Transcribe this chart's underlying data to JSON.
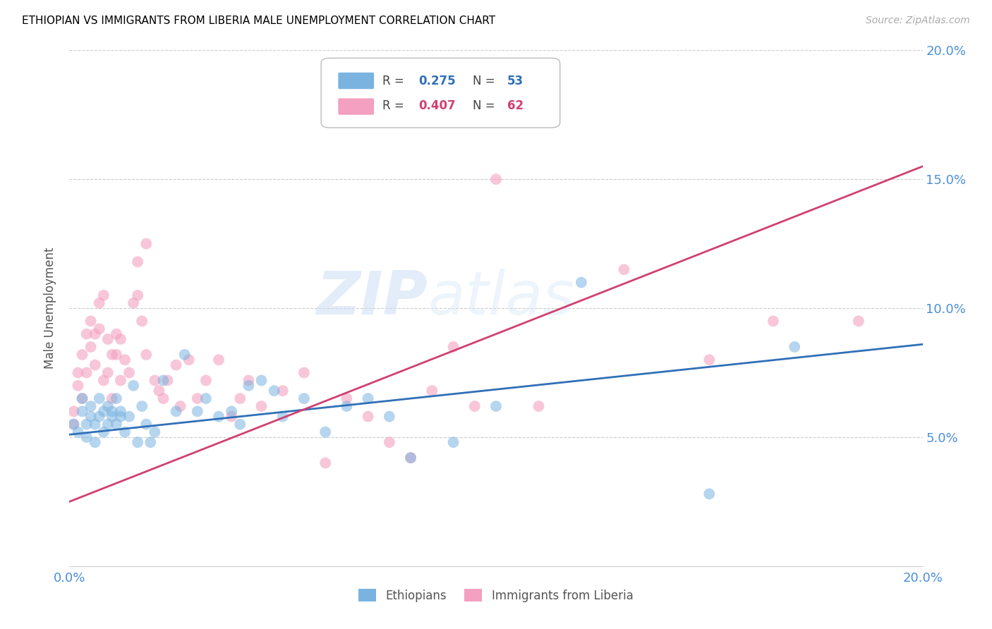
{
  "title": "ETHIOPIAN VS IMMIGRANTS FROM LIBERIA MALE UNEMPLOYMENT CORRELATION CHART",
  "source": "Source: ZipAtlas.com",
  "ylabel": "Male Unemployment",
  "x_min": 0.0,
  "x_max": 0.2,
  "y_min": 0.0,
  "y_max": 0.2,
  "blue_color": "#7ab3e0",
  "pink_color": "#f4a0c0",
  "blue_line_color": "#3070b8",
  "pink_line_color": "#d04070",
  "tick_color": "#4a90d9",
  "legend_label_blue": "Ethiopians",
  "legend_label_pink": "Immigrants from Liberia",
  "watermark_text": "ZIPatlas",
  "blue_slope": 0.175,
  "blue_intercept": 0.051,
  "pink_slope": 0.65,
  "pink_intercept": 0.025,
  "blue_x": [
    0.001,
    0.002,
    0.003,
    0.003,
    0.004,
    0.004,
    0.005,
    0.005,
    0.006,
    0.006,
    0.007,
    0.007,
    0.008,
    0.008,
    0.009,
    0.009,
    0.01,
    0.01,
    0.011,
    0.011,
    0.012,
    0.012,
    0.013,
    0.014,
    0.015,
    0.016,
    0.017,
    0.018,
    0.019,
    0.02,
    0.022,
    0.025,
    0.027,
    0.03,
    0.032,
    0.035,
    0.038,
    0.04,
    0.042,
    0.045,
    0.048,
    0.05,
    0.055,
    0.06,
    0.065,
    0.07,
    0.075,
    0.08,
    0.09,
    0.1,
    0.12,
    0.15,
    0.17
  ],
  "blue_y": [
    0.055,
    0.052,
    0.06,
    0.065,
    0.055,
    0.05,
    0.062,
    0.058,
    0.048,
    0.055,
    0.058,
    0.065,
    0.052,
    0.06,
    0.055,
    0.062,
    0.058,
    0.06,
    0.065,
    0.055,
    0.06,
    0.058,
    0.052,
    0.058,
    0.07,
    0.048,
    0.062,
    0.055,
    0.048,
    0.052,
    0.072,
    0.06,
    0.082,
    0.06,
    0.065,
    0.058,
    0.06,
    0.055,
    0.07,
    0.072,
    0.068,
    0.058,
    0.065,
    0.052,
    0.062,
    0.065,
    0.058,
    0.042,
    0.048,
    0.062,
    0.11,
    0.028,
    0.085
  ],
  "pink_x": [
    0.001,
    0.001,
    0.002,
    0.002,
    0.003,
    0.003,
    0.004,
    0.004,
    0.005,
    0.005,
    0.006,
    0.006,
    0.007,
    0.007,
    0.008,
    0.008,
    0.009,
    0.009,
    0.01,
    0.01,
    0.011,
    0.011,
    0.012,
    0.012,
    0.013,
    0.014,
    0.015,
    0.016,
    0.016,
    0.017,
    0.018,
    0.018,
    0.02,
    0.021,
    0.022,
    0.023,
    0.025,
    0.026,
    0.028,
    0.03,
    0.032,
    0.035,
    0.038,
    0.04,
    0.042,
    0.045,
    0.05,
    0.055,
    0.06,
    0.065,
    0.07,
    0.075,
    0.08,
    0.085,
    0.09,
    0.095,
    0.1,
    0.11,
    0.13,
    0.15,
    0.165,
    0.185
  ],
  "pink_y": [
    0.06,
    0.055,
    0.07,
    0.075,
    0.082,
    0.065,
    0.09,
    0.075,
    0.095,
    0.085,
    0.078,
    0.09,
    0.092,
    0.102,
    0.105,
    0.072,
    0.088,
    0.075,
    0.082,
    0.065,
    0.09,
    0.082,
    0.072,
    0.088,
    0.08,
    0.075,
    0.102,
    0.105,
    0.118,
    0.095,
    0.082,
    0.125,
    0.072,
    0.068,
    0.065,
    0.072,
    0.078,
    0.062,
    0.08,
    0.065,
    0.072,
    0.08,
    0.058,
    0.065,
    0.072,
    0.062,
    0.068,
    0.075,
    0.04,
    0.065,
    0.058,
    0.048,
    0.042,
    0.068,
    0.085,
    0.062,
    0.15,
    0.062,
    0.115,
    0.08,
    0.095,
    0.095
  ]
}
